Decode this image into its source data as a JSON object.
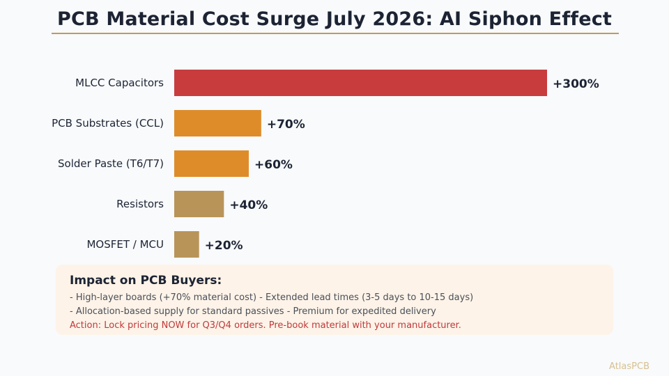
{
  "header": {
    "title": "PCB Material Cost Surge July 2026: AI Siphon Effect"
  },
  "chart_data": {
    "type": "bar",
    "orientation": "horizontal",
    "categories": [
      "MLCC Capacitors",
      "PCB Substrates (CCL)",
      "Solder Paste (T6/T7)",
      "Resistors",
      "MOSFET / MCU"
    ],
    "values": [
      300,
      70,
      60,
      40,
      20
    ],
    "data_labels": [
      "+300%",
      "+70%",
      "+60%",
      "+40%",
      "+20%"
    ],
    "colors": [
      "#c83c3e",
      "#de8c2a",
      "#de8c2a",
      "#b99459",
      "#b99459"
    ],
    "xlim": [
      0,
      300
    ],
    "grid": false,
    "axis_lines": false
  },
  "impact": {
    "heading": "Impact on PCB Buyers:",
    "lines": [
      "- High-layer boards (+70% material cost) - Extended lead times (3-5 days to 10-15 days)",
      "- Allocation-based supply for standard passives - Premium for expedited delivery"
    ],
    "action": "Action: Lock pricing NOW for Q3/Q4 orders. Pre-book material with your manufacturer."
  },
  "watermark": "AtlasPCB"
}
